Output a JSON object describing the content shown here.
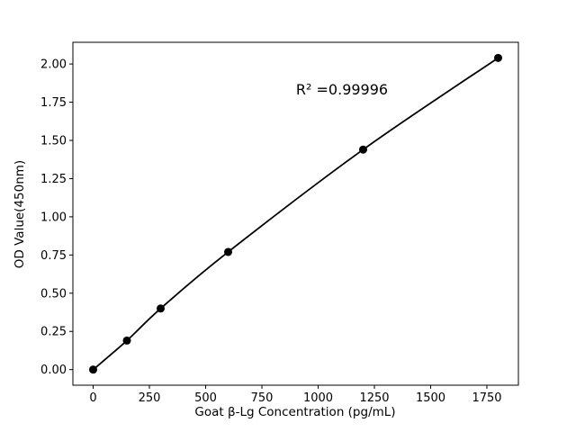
{
  "figure": {
    "background": "#ffffff"
  },
  "chart_data": {
    "type": "line",
    "title": "",
    "xlabel": "Goat β-Lg Concentration (pg/mL)",
    "ylabel": "OD Value(450nm)",
    "annotation": "R² =0.99996",
    "x": [
      0,
      150,
      300,
      600,
      1200,
      1800
    ],
    "y": [
      0.0,
      0.19,
      0.4,
      0.77,
      1.44,
      2.04
    ],
    "xlim": [
      -90,
      1890
    ],
    "ylim": [
      -0.102,
      2.142
    ],
    "xticks": [
      0,
      250,
      500,
      750,
      1000,
      1250,
      1500,
      1750
    ],
    "xtick_labels": [
      "0",
      "250",
      "500",
      "750",
      "1000",
      "1250",
      "1500",
      "1750"
    ],
    "yticks": [
      0,
      0.25,
      0.5,
      0.75,
      1.0,
      1.25,
      1.5,
      1.75,
      2.0
    ],
    "ytick_labels": [
      "0.00",
      "0.25",
      "0.50",
      "0.75",
      "1.00",
      "1.25",
      "1.50",
      "1.75",
      "2.00"
    ],
    "grid": false,
    "legend": "none",
    "line_color": "#000000",
    "marker_color": "#000000",
    "marker": "circle"
  }
}
